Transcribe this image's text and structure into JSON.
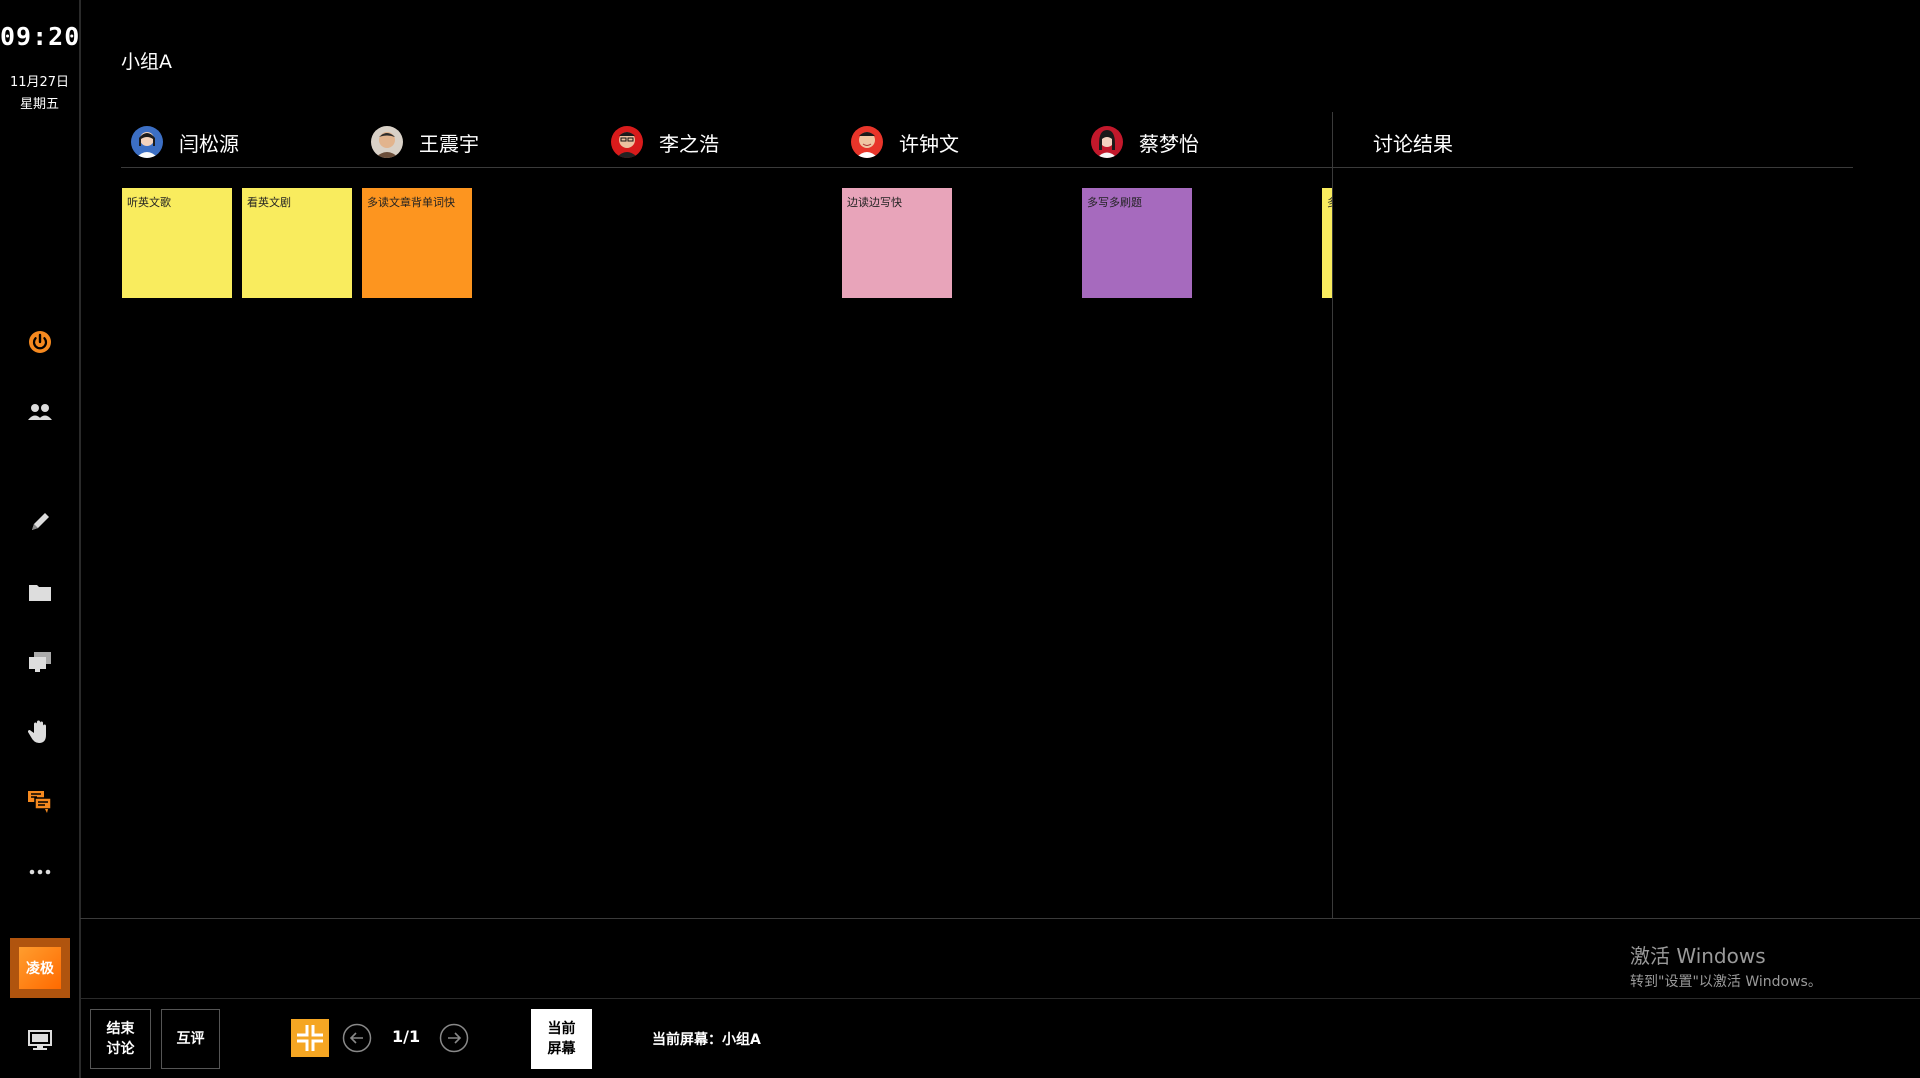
{
  "sidebar": {
    "time": "09:20",
    "date": "11月27日",
    "weekday": "星期五",
    "icons": [
      "power-icon",
      "group-icon",
      "pen-icon",
      "folder-icon",
      "screens-icon",
      "hand-icon",
      "chat-icon",
      "more-icon"
    ],
    "logo_text": "凌极",
    "accent": "#f5891f"
  },
  "group": {
    "title": "小组A"
  },
  "members": [
    {
      "name": "闫松源"
    },
    {
      "name": "王震宇"
    },
    {
      "name": "李之浩"
    },
    {
      "name": "许钟文"
    },
    {
      "name": "蔡梦怡"
    }
  ],
  "result": {
    "title": "讨论结果"
  },
  "notes": [
    {
      "text": "听英文歌",
      "color": "#f9ec5e"
    },
    {
      "text": "看英文剧",
      "color": "#f9ec5e"
    },
    {
      "text": "多读文章背单词快",
      "color": "#fd951f"
    },
    {
      "text": "边读边写快",
      "color": "#e8a4ba"
    },
    {
      "text": "多写多刷题",
      "color": "#a66abe"
    },
    {
      "text": "多",
      "color": "#f9ec5e"
    }
  ],
  "toolbar": {
    "end_line1": "结束",
    "end_line2": "讨论",
    "peer": "互评",
    "page": "1/1",
    "cur_line1": "当前",
    "cur_line2": "屏幕",
    "current_screen": "当前屏幕：小组A"
  },
  "watermark": {
    "line1": "激活 Windows",
    "line2": "转到\"设置\"以激活 Windows。"
  }
}
